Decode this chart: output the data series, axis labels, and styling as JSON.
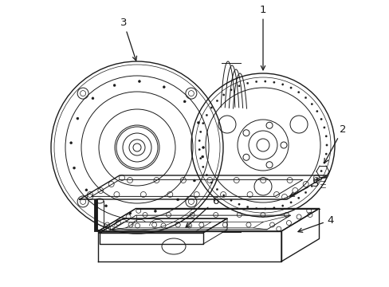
{
  "bg_color": "#ffffff",
  "line_color": "#1a1a1a",
  "label_color": "#1a1a1a",
  "lw_thick": 1.0,
  "lw_med": 0.7,
  "lw_thin": 0.5
}
